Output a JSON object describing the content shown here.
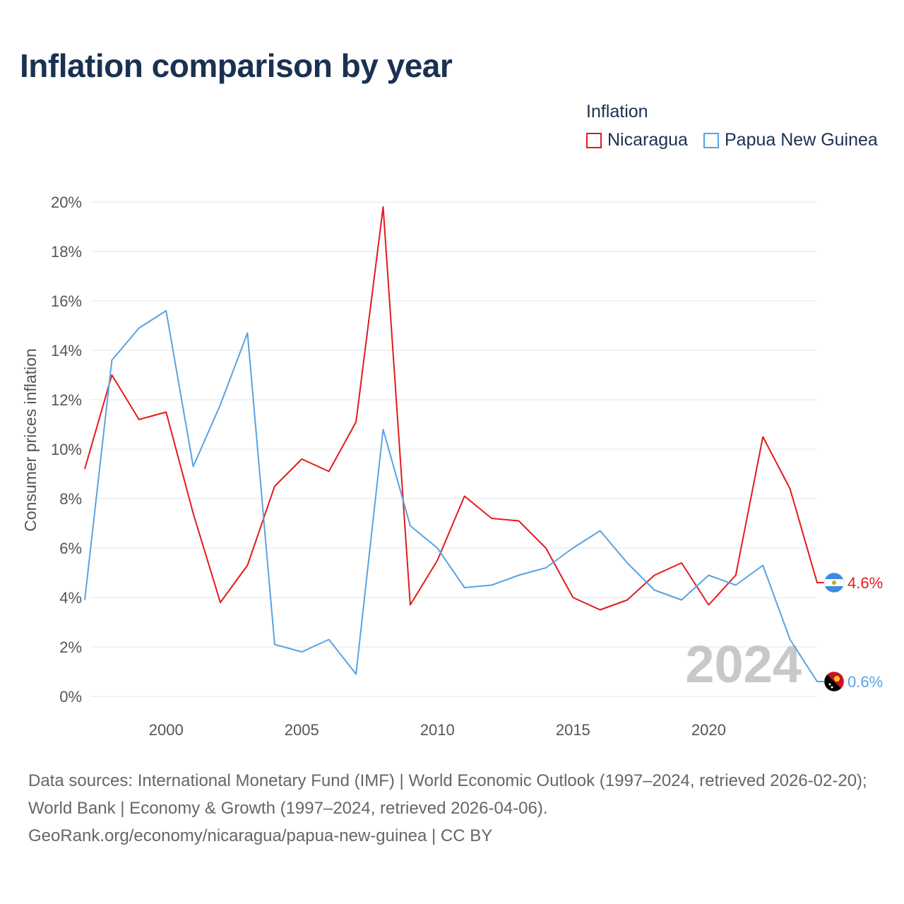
{
  "title": "Inflation comparison by year",
  "legend": {
    "title": "Inflation",
    "items": [
      {
        "label": "Nicaragua",
        "color": "#e31a1c"
      },
      {
        "label": "Papua New Guinea",
        "color": "#5aa2e0"
      }
    ]
  },
  "sources": {
    "line1": "Data sources: International Monetary Fund (IMF) | World Economic Outlook (1997–2024, retrieved 2026-02-20); World Bank | Economy & Growth (1997–2024, retrieved 2026-04-06).",
    "line2": "GeoRank.org/economy/nicaragua/papua-new-guinea | CC BY"
  },
  "chart_data": {
    "type": "line",
    "title": "Inflation comparison by year",
    "xlabel": "",
    "ylabel": "Consumer prices inflation",
    "year_watermark": "2024",
    "xlim": [
      1997,
      2024
    ],
    "ylim": [
      0,
      20
    ],
    "x_ticks": [
      2000,
      2005,
      2010,
      2015,
      2020
    ],
    "y_ticks": [
      0,
      2,
      4,
      6,
      8,
      10,
      12,
      14,
      16,
      18,
      20
    ],
    "y_tick_labels": [
      "0%",
      "2%",
      "4%",
      "6%",
      "8%",
      "10%",
      "12%",
      "14%",
      "16%",
      "18%",
      "20%"
    ],
    "grid": true,
    "legend_position": "top-right",
    "x": [
      1997,
      1998,
      1999,
      2000,
      2001,
      2002,
      2003,
      2004,
      2005,
      2006,
      2007,
      2008,
      2009,
      2010,
      2011,
      2012,
      2013,
      2014,
      2015,
      2016,
      2017,
      2018,
      2019,
      2020,
      2021,
      2022,
      2023,
      2024
    ],
    "series": [
      {
        "name": "Nicaragua",
        "color": "#e31a1c",
        "end_label": "4.6%",
        "values": [
          9.2,
          13.0,
          11.2,
          11.5,
          7.4,
          3.8,
          5.3,
          8.5,
          9.6,
          9.1,
          11.1,
          19.8,
          3.7,
          5.5,
          8.1,
          7.2,
          7.1,
          6.0,
          4.0,
          3.5,
          3.9,
          4.9,
          5.4,
          3.7,
          4.9,
          10.5,
          8.4,
          4.6
        ]
      },
      {
        "name": "Papua New Guinea",
        "color": "#5aa2e0",
        "end_label": "0.6%",
        "values": [
          3.9,
          13.6,
          14.9,
          15.6,
          9.3,
          11.8,
          14.7,
          2.1,
          1.8,
          2.3,
          0.9,
          10.8,
          6.9,
          6.0,
          4.4,
          4.5,
          4.9,
          5.2,
          6.0,
          6.7,
          5.4,
          4.3,
          3.9,
          4.9,
          4.5,
          5.3,
          2.3,
          0.6
        ]
      }
    ]
  }
}
